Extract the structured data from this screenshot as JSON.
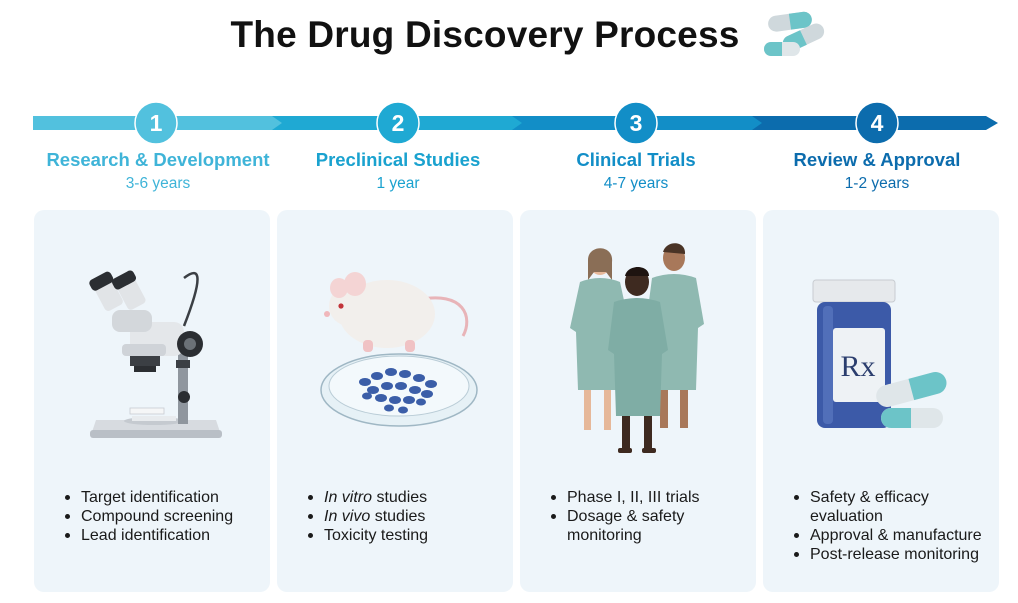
{
  "title": "The Drug Discovery Process",
  "stages": [
    {
      "number": "1",
      "name": "Research & Development",
      "duration": "3-6 years",
      "color": "#52c1de",
      "items": [
        "Target identification",
        "Compound screening",
        "Lead identification"
      ],
      "illustration_icon": "microscope-icon"
    },
    {
      "number": "2",
      "name": "Preclinical Studies",
      "duration": "1 year",
      "color": "#1fa9d3",
      "items": [
        {
          "italic": "In vitro",
          "text": " studies"
        },
        {
          "italic": "In vivo",
          "text": " studies"
        },
        "Toxicity testing"
      ],
      "illustration_icon": "mouse-and-petri-dish-icon"
    },
    {
      "number": "3",
      "name": "Clinical Trials",
      "duration": "4-7 years",
      "color": "#128ec7",
      "items": [
        "Phase I, II, III trials",
        "Dosage & safety monitoring"
      ],
      "illustration_icon": "patients-icon"
    },
    {
      "number": "4",
      "name": "Review & Approval",
      "duration": "1-2 years",
      "color": "#0c6cad",
      "items": [
        "Safety & efficacy evaluation",
        "Approval & manufacture",
        "Post-release monitoring"
      ],
      "illustration_icon": "pill-bottle-icon",
      "bottle_label": "Rx"
    }
  ],
  "colors": {
    "card_background": "#eef5fa",
    "capsule_teal": "#6cc4c8"
  }
}
